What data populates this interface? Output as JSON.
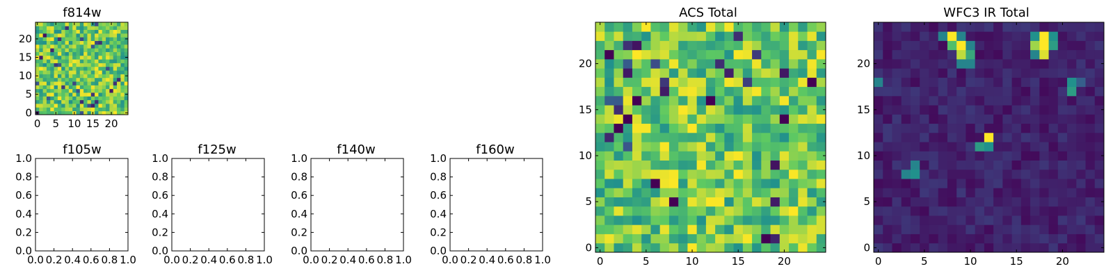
{
  "colors": {
    "viridis": [
      "#440154",
      "#3b528b",
      "#21918c",
      "#5ec962",
      "#fde725"
    ],
    "axis": "#000000",
    "background": "#ffffff"
  },
  "chart_data": [
    {
      "id": "f814w",
      "type": "heatmap",
      "title": "f814w",
      "grid_size": 25,
      "x_ticks": [
        0,
        5,
        10,
        15,
        20
      ],
      "y_ticks": [
        0,
        5,
        10,
        15,
        20
      ],
      "xlim": [
        -0.5,
        24.5
      ],
      "ylim": [
        -0.5,
        24.5
      ],
      "value_style": "acs",
      "seed": 81
    },
    {
      "id": "f105w",
      "type": "empty",
      "title": "f105w",
      "x_ticks": [
        "0.0",
        "0.2",
        "0.4",
        "0.6",
        "0.8",
        "1.0"
      ],
      "y_ticks": [
        "0.0",
        "0.2",
        "0.4",
        "0.6",
        "0.8",
        "1.0"
      ],
      "xlim": [
        0,
        1
      ],
      "ylim": [
        0,
        1
      ]
    },
    {
      "id": "f125w",
      "type": "empty",
      "title": "f125w",
      "x_ticks": [
        "0.0",
        "0.2",
        "0.4",
        "0.6",
        "0.8",
        "1.0"
      ],
      "y_ticks": [
        "0.0",
        "0.2",
        "0.4",
        "0.6",
        "0.8",
        "1.0"
      ],
      "xlim": [
        0,
        1
      ],
      "ylim": [
        0,
        1
      ]
    },
    {
      "id": "f140w",
      "type": "empty",
      "title": "f140w",
      "x_ticks": [
        "0.0",
        "0.2",
        "0.4",
        "0.6",
        "0.8",
        "1.0"
      ],
      "y_ticks": [
        "0.0",
        "0.2",
        "0.4",
        "0.6",
        "0.8",
        "1.0"
      ],
      "xlim": [
        0,
        1
      ],
      "ylim": [
        0,
        1
      ]
    },
    {
      "id": "f160w",
      "type": "empty",
      "title": "f160w",
      "x_ticks": [
        "0.0",
        "0.2",
        "0.4",
        "0.6",
        "0.8",
        "1.0"
      ],
      "y_ticks": [
        "0.0",
        "0.2",
        "0.4",
        "0.6",
        "0.8",
        "1.0"
      ],
      "xlim": [
        0,
        1
      ],
      "ylim": [
        0,
        1
      ]
    },
    {
      "id": "acs-total",
      "type": "heatmap",
      "title": "ACS Total",
      "grid_size": 25,
      "x_ticks": [
        0,
        5,
        10,
        15,
        20
      ],
      "y_ticks": [
        0,
        5,
        10,
        15,
        20
      ],
      "xlim": [
        -0.5,
        24.5
      ],
      "ylim": [
        -0.5,
        24.5
      ],
      "value_style": "acs",
      "seed": 7,
      "min_cells": [
        [
          1,
          21
        ],
        [
          4,
          16
        ],
        [
          3,
          14
        ],
        [
          2,
          13
        ],
        [
          12,
          16
        ],
        [
          20,
          14
        ],
        [
          23,
          18
        ],
        [
          18,
          1
        ],
        [
          8,
          5
        ],
        [
          6,
          7
        ]
      ]
    },
    {
      "id": "wfc3-ir-total",
      "type": "heatmap",
      "title": "WFC3 IR Total",
      "grid_size": 25,
      "x_ticks": [
        0,
        5,
        10,
        15,
        20
      ],
      "y_ticks": [
        0,
        5,
        10,
        15,
        20
      ],
      "xlim": [
        -0.5,
        24.5
      ],
      "ylim": [
        -0.5,
        24.5
      ],
      "value_style": "ir",
      "seed": 33,
      "sources": [
        {
          "x": 8,
          "y": 23,
          "value": 1.0
        },
        {
          "x": 9,
          "y": 22,
          "value": 1.0
        },
        {
          "x": 9,
          "y": 21,
          "value": 0.9
        },
        {
          "x": 8,
          "y": 22,
          "value": 0.7
        },
        {
          "x": 7,
          "y": 23,
          "value": 0.45
        },
        {
          "x": 9,
          "y": 23,
          "value": 0.45
        },
        {
          "x": 10,
          "y": 21,
          "value": 0.6
        },
        {
          "x": 10,
          "y": 22,
          "value": 0.45
        },
        {
          "x": 9,
          "y": 20,
          "value": 0.45
        },
        {
          "x": 10,
          "y": 20,
          "value": 0.45
        },
        {
          "x": 18,
          "y": 23,
          "value": 1.0
        },
        {
          "x": 18,
          "y": 22,
          "value": 1.0
        },
        {
          "x": 18,
          "y": 21,
          "value": 0.95
        },
        {
          "x": 17,
          "y": 22,
          "value": 0.85
        },
        {
          "x": 17,
          "y": 23,
          "value": 0.5
        },
        {
          "x": 19,
          "y": 23,
          "value": 0.5
        },
        {
          "x": 19,
          "y": 22,
          "value": 0.55
        },
        {
          "x": 17,
          "y": 21,
          "value": 0.45
        },
        {
          "x": 21,
          "y": 18,
          "value": 0.5
        },
        {
          "x": 21,
          "y": 17,
          "value": 0.55
        },
        {
          "x": 22,
          "y": 18,
          "value": 0.3
        },
        {
          "x": 0,
          "y": 18,
          "value": 0.45
        },
        {
          "x": 12,
          "y": 12,
          "value": 1.0
        },
        {
          "x": 11,
          "y": 11,
          "value": 0.55
        },
        {
          "x": 12,
          "y": 11,
          "value": 0.5
        },
        {
          "x": 3,
          "y": 8,
          "value": 0.45
        },
        {
          "x": 4,
          "y": 8,
          "value": 0.5
        },
        {
          "x": 4,
          "y": 9,
          "value": 0.45
        }
      ]
    }
  ]
}
